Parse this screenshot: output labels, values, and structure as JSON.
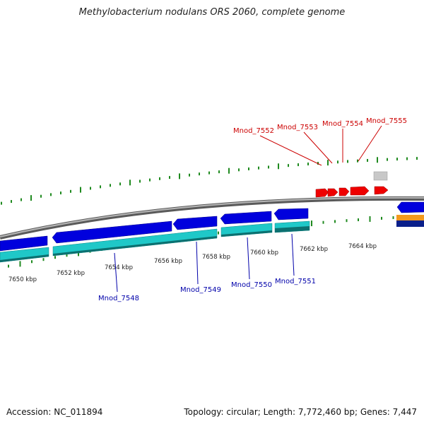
{
  "title": "Methylobacterium nodulans ORS 2060, complete genome",
  "accession_text": "Accession: NC_011894",
  "summary_text": "Topology: circular; Length: 7,772,460 bp; Genes: 7,447",
  "colors": {
    "forward_cds": "#ee0000",
    "reverse_cds": "#0000dd",
    "reverse_cds_secondary": "#1fc8c8",
    "backbone": "#8a8a8a",
    "ticks": "#1f8a1f",
    "label_forward": "#cc0000",
    "label_reverse": "#0000aa",
    "misc_feature": "#c8c8c8",
    "orange_feature": "#f39a1e",
    "navy_feature": "#0a1f8a"
  },
  "scale": {
    "unit": "kbp",
    "ticks": [
      "7650 kbp",
      "7652 kbp",
      "7654 kbp",
      "7656 kbp",
      "7658 kbp",
      "7660 kbp",
      "7662 kbp",
      "7664 kbp"
    ]
  },
  "gene_labels": {
    "forward": [
      "Mnod_7552",
      "Mnod_7553",
      "Mnod_7554",
      "Mnod_7555"
    ],
    "reverse": [
      "Mnod_7548",
      "Mnod_7549",
      "Mnod_7550",
      "Mnod_7551"
    ]
  }
}
